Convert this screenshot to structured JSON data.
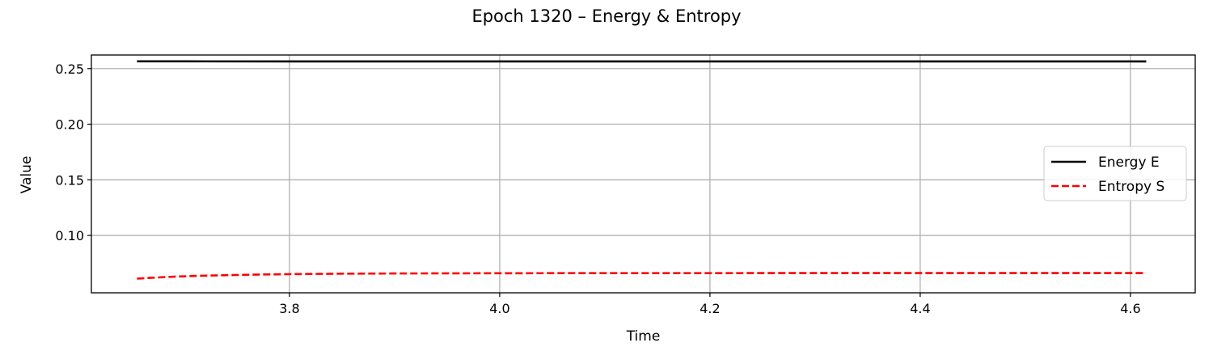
{
  "chart_data": {
    "type": "line",
    "title": "Epoch 1320 – Energy & Entropy",
    "xlabel": "Time",
    "ylabel": "Value",
    "xlim": [
      3.6116,
      4.6616
    ],
    "ylim": [
      0.0484,
      0.2622
    ],
    "xticks": [
      3.8,
      4.0,
      4.2,
      4.4,
      4.6
    ],
    "xtick_labels": [
      "3.8",
      "4.0",
      "4.2",
      "4.4",
      "4.6"
    ],
    "yticks": [
      0.1,
      0.15,
      0.2,
      0.25
    ],
    "ytick_labels": [
      "0.10",
      "0.15",
      "0.20",
      "0.25"
    ],
    "grid": true,
    "legend_position": "center-right",
    "series": [
      {
        "name": "Energy E",
        "color": "#000000",
        "style": "solid",
        "x": [
          3.655,
          3.7,
          3.8,
          3.9,
          4.0,
          4.1,
          4.2,
          4.3,
          4.4,
          4.5,
          4.615
        ],
        "y": [
          0.2565,
          0.2565,
          0.2564,
          0.2564,
          0.2564,
          0.2564,
          0.2564,
          0.2564,
          0.2564,
          0.2564,
          0.2564
        ]
      },
      {
        "name": "Entropy S",
        "color": "#ff0000",
        "style": "dashed",
        "x": [
          3.655,
          3.67,
          3.69,
          3.71,
          3.74,
          3.77,
          3.8,
          3.85,
          3.9,
          4.0,
          4.1,
          4.2,
          4.3,
          4.4,
          4.5,
          4.615
        ],
        "y": [
          0.0612,
          0.062,
          0.0629,
          0.0636,
          0.0643,
          0.0648,
          0.0652,
          0.0656,
          0.0658,
          0.066,
          0.0661,
          0.0661,
          0.0662,
          0.0662,
          0.0662,
          0.0662
        ]
      }
    ]
  }
}
